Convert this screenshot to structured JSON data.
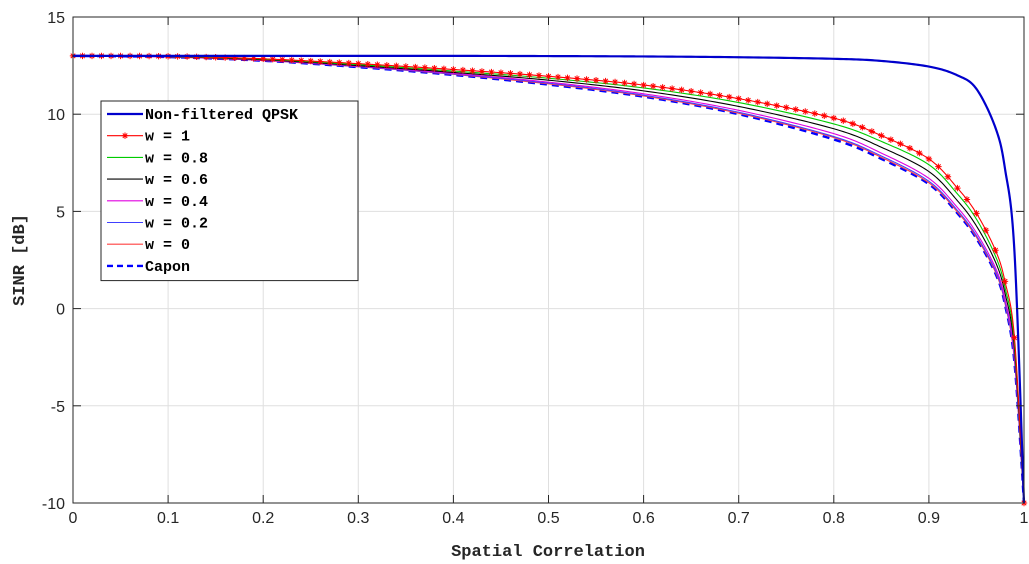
{
  "chart_data": {
    "type": "line",
    "title": "",
    "xlabel": "Spatial Correlation",
    "ylabel": "SINR [dB]",
    "xlim": [
      0,
      1
    ],
    "ylim": [
      -10,
      15
    ],
    "xticks": [
      "0",
      "0.1",
      "0.2",
      "0.3",
      "0.4",
      "0.5",
      "0.6",
      "0.7",
      "0.8",
      "0.9",
      "1"
    ],
    "yticks": [
      "-10",
      "-5",
      "0",
      "5",
      "10",
      "15"
    ],
    "grid": true,
    "legend_position": "upper-left",
    "x": [
      0,
      0.1,
      0.2,
      0.3,
      0.4,
      0.5,
      0.6,
      0.7,
      0.8,
      0.85,
      0.9,
      0.93,
      0.95,
      0.97,
      0.98,
      0.99,
      1
    ],
    "series": [
      {
        "name": "Non-filtered QPSK",
        "color": "#0000cc",
        "style": "solid-thick",
        "values": [
          13.0,
          13.0,
          13.0,
          13.0,
          13.0,
          12.99,
          12.97,
          12.93,
          12.85,
          12.74,
          12.45,
          12.0,
          11.3,
          9.3,
          7.2,
          2.9,
          -10
        ]
      },
      {
        "name": "w = 1",
        "color": "#ff0000",
        "style": "solid-star",
        "values": [
          13.0,
          12.98,
          12.85,
          12.6,
          12.3,
          11.95,
          11.5,
          10.8,
          9.8,
          8.9,
          7.7,
          6.2,
          4.9,
          3.0,
          1.4,
          -1.5,
          -10
        ]
      },
      {
        "name": "w = 0.8",
        "color": "#00cc00",
        "style": "solid",
        "values": [
          13.0,
          12.97,
          12.83,
          12.55,
          12.22,
          11.85,
          11.35,
          10.6,
          9.5,
          8.6,
          7.4,
          5.9,
          4.6,
          2.7,
          1.1,
          -1.8,
          -10
        ]
      },
      {
        "name": "w = 0.6",
        "color": "#000000",
        "style": "solid",
        "values": [
          13.0,
          12.96,
          12.8,
          12.5,
          12.15,
          11.75,
          11.2,
          10.4,
          9.25,
          8.3,
          7.05,
          5.55,
          4.25,
          2.4,
          0.8,
          -2.1,
          -10
        ]
      },
      {
        "name": "w = 0.4",
        "color": "#e000e0",
        "style": "solid",
        "values": [
          13.0,
          12.95,
          12.78,
          12.47,
          12.1,
          11.65,
          11.05,
          10.2,
          9.0,
          8.0,
          6.7,
          5.2,
          3.9,
          2.1,
          0.5,
          -2.4,
          -10
        ]
      },
      {
        "name": "w = 0.2",
        "color": "#4040ff",
        "style": "solid",
        "values": [
          13.0,
          12.95,
          12.77,
          12.45,
          12.07,
          11.6,
          10.98,
          10.1,
          8.85,
          7.85,
          6.55,
          5.05,
          3.75,
          1.95,
          0.35,
          -2.6,
          -10
        ]
      },
      {
        "name": "w = 0",
        "color": "#ff4040",
        "style": "solid",
        "values": [
          13.0,
          12.94,
          12.76,
          12.44,
          12.05,
          11.56,
          10.94,
          10.05,
          8.8,
          7.78,
          6.47,
          4.97,
          3.67,
          1.87,
          0.27,
          -2.7,
          -10
        ]
      },
      {
        "name": "Capon",
        "color": "#0000ff",
        "style": "dashed-thick",
        "values": [
          13.0,
          12.94,
          12.75,
          12.42,
          12.02,
          11.52,
          10.9,
          10.0,
          8.7,
          7.7,
          6.4,
          4.9,
          3.6,
          1.8,
          0.2,
          -2.8,
          -10
        ]
      }
    ]
  }
}
